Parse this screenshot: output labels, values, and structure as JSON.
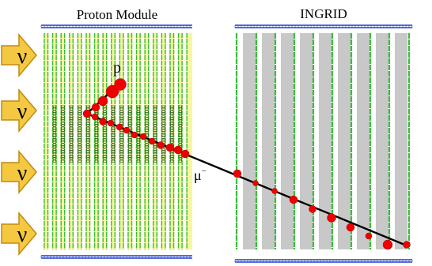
{
  "labels": {
    "proton_module": "Proton Module",
    "ingrid": "INGRID",
    "proton": "p",
    "muon": "μ",
    "muon_charge": "−",
    "neutrino": "ν"
  },
  "neutrino_beam": {
    "count": 4
  },
  "colors": {
    "neutrino_arrow_fill": "#f5c842",
    "neutrino_arrow_stroke": "#c08a10",
    "scintillator_yellow": "#f7f7a0",
    "scintillator_green": "#3dbb3d",
    "iron_plate": "#c8c8c8",
    "module_frame": "#1f3fd1",
    "hit": "#ee0000",
    "track": "#000000"
  }
}
